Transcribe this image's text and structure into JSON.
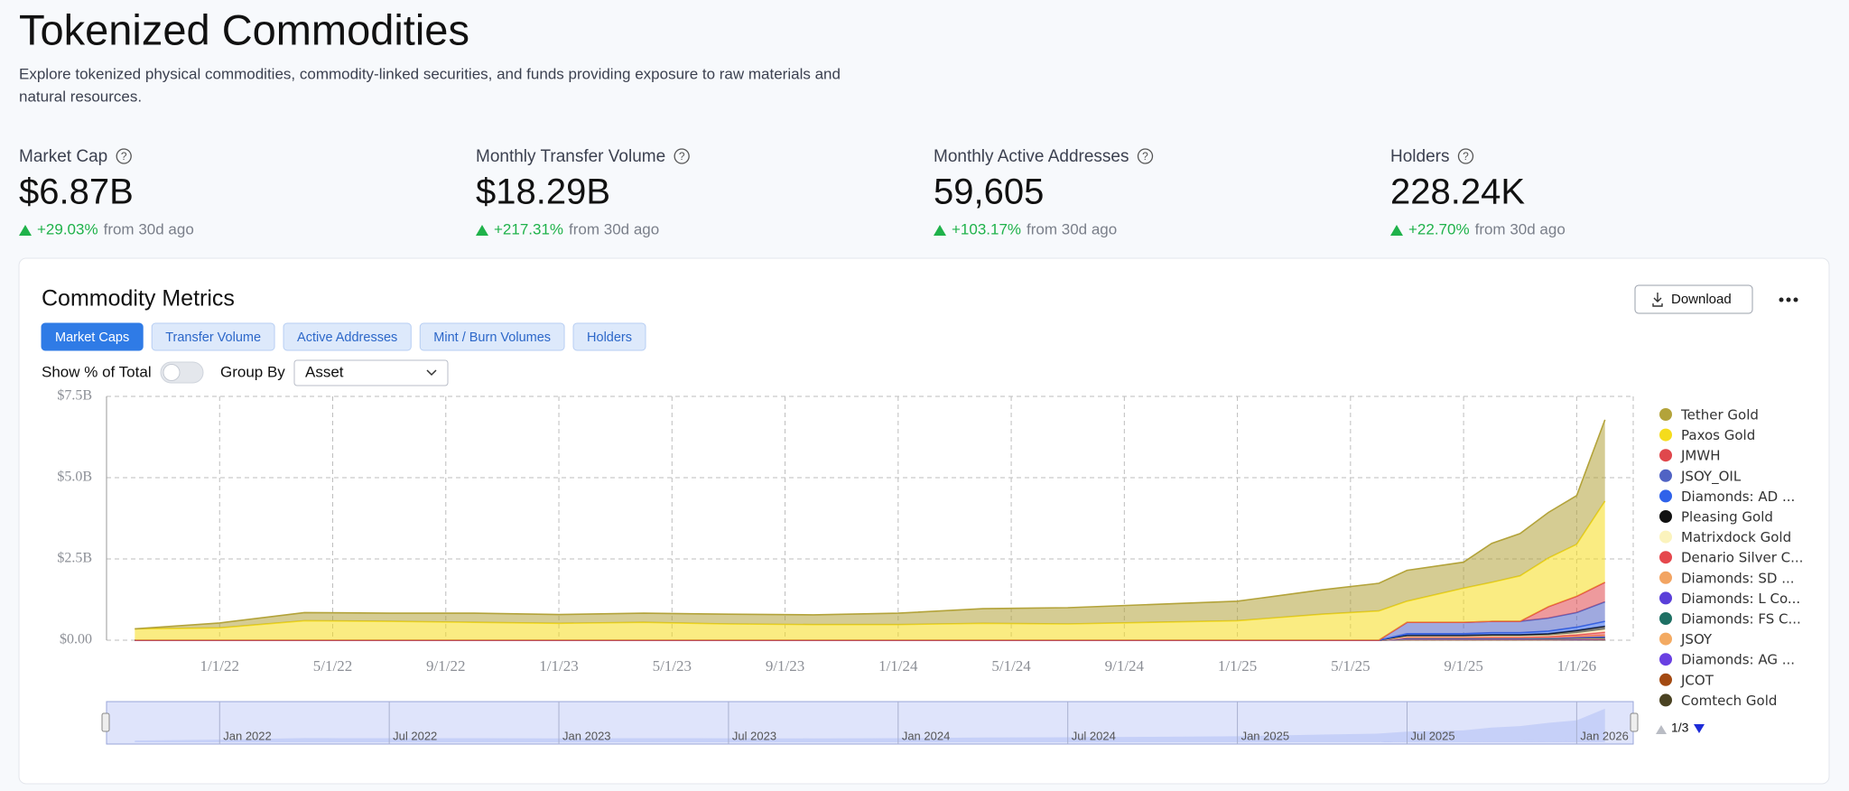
{
  "header": {
    "title": "Tokenized Commodities",
    "description": [
      "Explore tokenized physical commodities, commodity-linked securities, and funds providing exposure to raw materials and",
      "natural resources."
    ]
  },
  "stats": [
    {
      "label": "Market Cap",
      "value": "$6.87B",
      "change": "+29.03%",
      "note": "from 30d ago"
    },
    {
      "label": "Monthly Transfer Volume",
      "value": "$18.29B",
      "change": "+217.31%",
      "note": "from 30d ago"
    },
    {
      "label": "Monthly Active Addresses",
      "value": "59,605",
      "change": "+103.17%",
      "note": "from 30d ago"
    },
    {
      "label": "Holders",
      "value": "228.24K",
      "change": "+22.70%",
      "note": "from 30d ago"
    }
  ],
  "card": {
    "title": "Commodity Metrics",
    "download": "Download",
    "tabs": [
      "Market Caps",
      "Transfer Volume",
      "Active Addresses",
      "Mint / Burn Volumes",
      "Holders"
    ],
    "active_tab": 0,
    "toggle_label": "Show % of Total",
    "group_by_label": "Group By",
    "group_by_value": "Asset",
    "legend_page": "1/3",
    "navigator_labels": [
      "Jan 2022",
      "Jul 2022",
      "Jan 2023",
      "Jul 2023",
      "Jan 2024",
      "Jul 2024",
      "Jan 2025",
      "Jul 2025",
      "Jan 2026"
    ],
    "navigator_color": "#6d87ef"
  },
  "chart_data": {
    "type": "stacked-area",
    "x": [
      "10/1/21",
      "1/1/22",
      "4/1/22",
      "7/1/22",
      "10/1/22",
      "1/1/23",
      "4/1/23",
      "7/1/23",
      "10/1/23",
      "1/1/24",
      "4/1/24",
      "7/1/24",
      "10/1/24",
      "1/1/25",
      "4/1/25",
      "6/1/25",
      "7/1/25",
      "9/1/25",
      "10/1/25",
      "11/1/25",
      "12/1/25",
      "1/1/26",
      "2/1/26"
    ],
    "xlim": [
      "9/1/21",
      "3/1/26"
    ],
    "xticks": [
      "1/1/22",
      "5/1/22",
      "9/1/22",
      "1/1/23",
      "5/1/23",
      "9/1/23",
      "1/1/24",
      "5/1/24",
      "9/1/24",
      "1/1/25",
      "5/1/25",
      "9/1/25",
      "1/1/26"
    ],
    "ylim": [
      0,
      7.5
    ],
    "yticks": [
      {
        "value": 0,
        "label": "$0.00"
      },
      {
        "value": 2.5,
        "label": "$2.5B"
      },
      {
        "value": 5,
        "label": "$5.0B"
      },
      {
        "value": 7.5,
        "label": "$7.5B"
      }
    ],
    "grid": true,
    "series": [
      {
        "name": "Tether Gold",
        "color": "#b3a33a",
        "values": [
          0,
          0.15,
          0.25,
          0.25,
          0.28,
          0.27,
          0.28,
          0.3,
          0.3,
          0.35,
          0.45,
          0.5,
          0.55,
          0.6,
          0.75,
          0.85,
          0.95,
          0.8,
          1.2,
          1.3,
          1.4,
          1.5,
          2.5
        ]
      },
      {
        "name": "Paxos Gold",
        "color": "#f5dc1c",
        "values": [
          0.35,
          0.38,
          0.6,
          0.58,
          0.55,
          0.52,
          0.55,
          0.5,
          0.48,
          0.48,
          0.52,
          0.5,
          0.55,
          0.6,
          0.8,
          0.9,
          0.65,
          1.05,
          1.2,
          1.4,
          1.5,
          1.6,
          2.5
        ]
      },
      {
        "name": "JMWH",
        "color": "#e0474c",
        "values": [
          0,
          0,
          0,
          0,
          0,
          0,
          0,
          0,
          0,
          0,
          0,
          0,
          0,
          0,
          0,
          0,
          0,
          0,
          0,
          0,
          0.35,
          0.5,
          0.6
        ]
      },
      {
        "name": "JSOY_OIL",
        "color": "#5063c4",
        "values": [
          0,
          0,
          0,
          0,
          0,
          0,
          0,
          0,
          0,
          0,
          0,
          0,
          0,
          0,
          0,
          0,
          0.35,
          0.35,
          0.35,
          0.35,
          0.4,
          0.45,
          0.6
        ]
      },
      {
        "name": "Diamonds: AD ...",
        "color": "#2f62ea",
        "values": [
          0,
          0,
          0,
          0,
          0,
          0,
          0,
          0,
          0,
          0,
          0,
          0,
          0,
          0,
          0,
          0,
          0.05,
          0.05,
          0.06,
          0.06,
          0.08,
          0.1,
          0.15
        ]
      },
      {
        "name": "Pleasing Gold",
        "color": "#111111",
        "values": [
          0,
          0,
          0,
          0,
          0,
          0,
          0,
          0,
          0,
          0,
          0,
          0,
          0,
          0,
          0,
          0,
          0.03,
          0.03,
          0.04,
          0.04,
          0.05,
          0.08,
          0.1
        ]
      },
      {
        "name": "Matrixdock Gold",
        "color": "#fbf3bd",
        "values": [
          0,
          0,
          0,
          0,
          0,
          0,
          0,
          0,
          0,
          0,
          0,
          0,
          0,
          0,
          0,
          0,
          0.02,
          0.02,
          0.03,
          0.03,
          0.03,
          0.05,
          0.08
        ]
      },
      {
        "name": "Denario Silver C...",
        "color": "#e5484d",
        "values": [
          0,
          0,
          0,
          0,
          0,
          0,
          0,
          0,
          0,
          0,
          0,
          0,
          0,
          0,
          0,
          0,
          0.02,
          0.02,
          0.02,
          0.02,
          0.03,
          0.05,
          0.1
        ]
      },
      {
        "name": "Diamonds: SD ...",
        "color": "#f2a462",
        "values": [
          0,
          0,
          0,
          0,
          0,
          0,
          0,
          0,
          0,
          0,
          0,
          0,
          0,
          0,
          0,
          0,
          0.02,
          0.02,
          0.02,
          0.02,
          0.02,
          0.03,
          0.04
        ]
      },
      {
        "name": "Diamonds: L Co...",
        "color": "#5a3fd9",
        "values": [
          0,
          0,
          0,
          0,
          0,
          0,
          0,
          0,
          0,
          0,
          0,
          0,
          0,
          0,
          0,
          0,
          0.01,
          0.01,
          0.01,
          0.01,
          0.02,
          0.02,
          0.03
        ]
      },
      {
        "name": "Diamonds: FS C...",
        "color": "#1f7064",
        "values": [
          0,
          0,
          0,
          0,
          0,
          0,
          0,
          0,
          0,
          0,
          0,
          0,
          0,
          0,
          0,
          0,
          0.01,
          0.01,
          0.01,
          0.01,
          0.01,
          0.02,
          0.02
        ]
      },
      {
        "name": "JSOY",
        "color": "#f3aa62",
        "values": [
          0,
          0,
          0,
          0,
          0,
          0,
          0,
          0,
          0,
          0,
          0,
          0,
          0,
          0,
          0,
          0,
          0.01,
          0.01,
          0.01,
          0.01,
          0.01,
          0.02,
          0.02
        ]
      },
      {
        "name": "Diamonds: AG ...",
        "color": "#6a40e2",
        "values": [
          0,
          0,
          0,
          0,
          0,
          0,
          0,
          0,
          0,
          0,
          0,
          0,
          0,
          0,
          0,
          0,
          0.01,
          0.01,
          0.01,
          0.01,
          0.01,
          0.01,
          0.02
        ]
      },
      {
        "name": "JCOT",
        "color": "#a34a12",
        "values": [
          0,
          0,
          0,
          0,
          0,
          0,
          0,
          0,
          0,
          0,
          0,
          0,
          0,
          0,
          0,
          0,
          0.01,
          0.01,
          0.01,
          0.01,
          0.01,
          0.01,
          0.01
        ]
      },
      {
        "name": "Comtech Gold",
        "color": "#4a4222",
        "values": [
          0,
          0,
          0,
          0,
          0,
          0,
          0,
          0,
          0,
          0,
          0,
          0,
          0,
          0,
          0,
          0,
          0.01,
          0.01,
          0.01,
          0.01,
          0.01,
          0.01,
          0.01
        ]
      }
    ]
  }
}
